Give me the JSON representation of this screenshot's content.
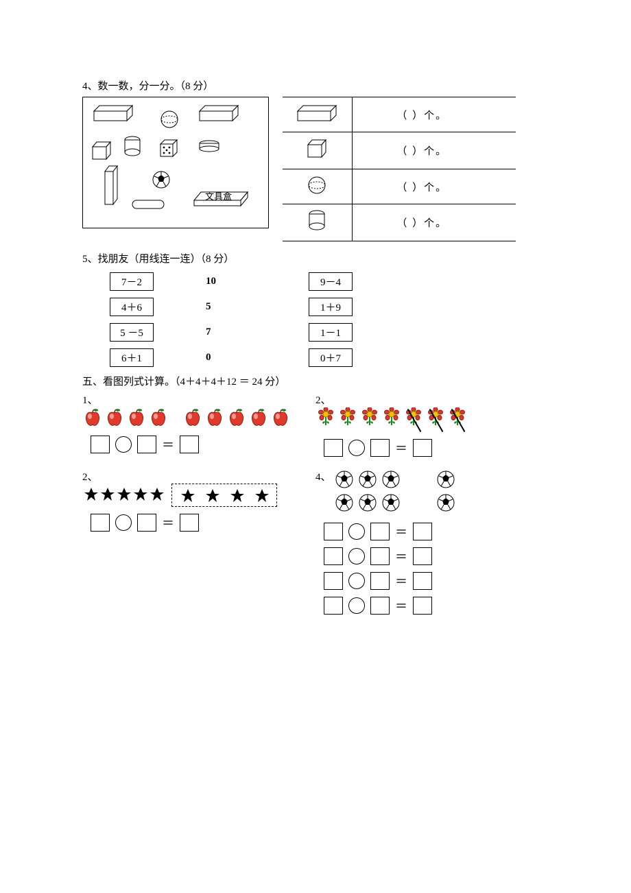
{
  "q4": {
    "title": "4、数一数，分一分。（8 分）",
    "box_label": "文具盒",
    "rows": [
      {
        "shape": "cuboid",
        "answer_text": "（      ）个。"
      },
      {
        "shape": "cube",
        "answer_text": "（      ）个。"
      },
      {
        "shape": "sphere",
        "answer_text": "（      ）个。"
      },
      {
        "shape": "cylinder",
        "answer_text": "（      ）个。"
      }
    ]
  },
  "q5": {
    "title": "5、找朋友（用线连一连）（8 分）",
    "rows": [
      {
        "left": "7－2",
        "mid": "10",
        "right": "9－4"
      },
      {
        "left": "4＋6",
        "mid": "5",
        "right": "1＋9"
      },
      {
        "left": "5 －5",
        "mid": "7",
        "right": "1－1"
      },
      {
        "left": "6＋1",
        "mid": "0",
        "right": "0＋7"
      }
    ]
  },
  "sec5": {
    "title": "五、看图列式计算。（4＋4＋4＋12 ＝ 24 分）",
    "p1": {
      "label": "1、",
      "group1_count": 5,
      "group2_count": 4,
      "equals": "＝"
    },
    "p2": {
      "label": "2、",
      "total": 7,
      "struck": 3,
      "equals": "＝"
    },
    "p3": {
      "label": "2、",
      "left_count": 5,
      "right_count": 4,
      "equals": "＝"
    },
    "p4": {
      "label": "4、",
      "group_a": 6,
      "group_b": 2,
      "equals": "＝",
      "eq_count": 4
    }
  },
  "colors": {
    "apple_fill": "#e23a2a",
    "apple_leaf": "#1f7a1f",
    "flower_petal": "#d83a2b",
    "flower_center": "#f2c500",
    "flower_leaf": "#1a8a1a",
    "star_fill": "#000000",
    "ball_bw": "#000000"
  }
}
